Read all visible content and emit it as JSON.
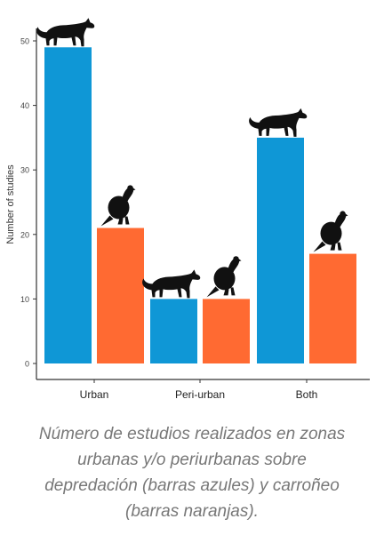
{
  "chart_data": {
    "type": "bar",
    "categories": [
      "Urban",
      "Peri-urban",
      "Both"
    ],
    "series": [
      {
        "values": [
          49,
          10,
          35
        ]
      },
      {
        "values": [
          21,
          10,
          17
        ]
      }
    ],
    "ylabel": "Number of studies",
    "xlabel": "",
    "ylim": [
      0,
      50
    ],
    "yticks": [
      0,
      10,
      20,
      30,
      40,
      50
    ],
    "grid": false,
    "legend": "none",
    "colors": {
      "series_1": "#0f97d6",
      "series_2": "#ff6a32",
      "axis": "#333333",
      "icon": "#111111"
    },
    "icons": [
      "puma-silhouette-icon",
      "condor-silhouette-icon"
    ]
  },
  "caption": {
    "lines": [
      "Número de estudios realizados en zonas",
      "urbanas y/o periurbanas sobre",
      "depredación (barras azules) y carroñeo",
      "(barras naranjas)."
    ]
  }
}
